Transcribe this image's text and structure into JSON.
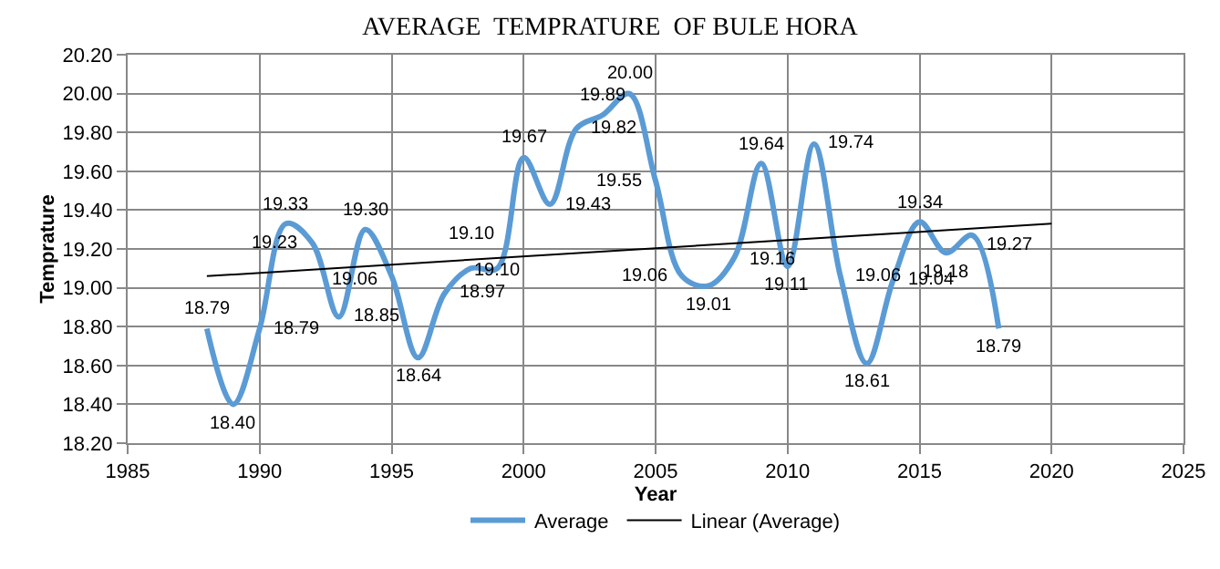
{
  "chart_data": {
    "type": "line",
    "title": "AVERAGE  TEMPRATURE  OF BULE HORA",
    "xlabel": "Year",
    "ylabel": "Temprature",
    "xlim": [
      1985,
      2025
    ],
    "xticks": [
      1985,
      1990,
      1995,
      2000,
      2005,
      2010,
      2015,
      2020,
      2025
    ],
    "ylim": [
      18.2,
      20.2
    ],
    "yticks": [
      {
        "value": 18.2,
        "label": "18.20"
      },
      {
        "value": 18.4,
        "label": "18.40"
      },
      {
        "value": 18.6,
        "label": "18.60"
      },
      {
        "value": 18.8,
        "label": "18.80"
      },
      {
        "value": 19.0,
        "label": "19.00"
      },
      {
        "value": 19.2,
        "label": "19.20"
      },
      {
        "value": 19.4,
        "label": "19.40"
      },
      {
        "value": 19.6,
        "label": "19.60"
      },
      {
        "value": 19.8,
        "label": "19.80"
      },
      {
        "value": 20.0,
        "label": "20.00"
      },
      {
        "value": 20.2,
        "label": "20.20"
      }
    ],
    "grid": true,
    "legend": "bottom",
    "marker": "none",
    "series": [
      {
        "name": "Average",
        "color": "#5b9bd5",
        "value_labels": [
          "18.79",
          "18.40",
          "18.79",
          "19.33",
          "19.23",
          "18.85",
          "19.30",
          "19.06",
          "18.64",
          "18.97",
          "19.10",
          "19.10",
          "19.67",
          "19.43",
          "19.82",
          "19.89",
          "20.00",
          "19.55",
          "19.06",
          "19.01",
          "19.16",
          "19.64",
          "19.11",
          "19.74",
          "19.06",
          "18.61",
          "19.04",
          "19.34",
          "19.18",
          "19.27",
          "18.79"
        ],
        "x": [
          1988,
          1989,
          1990,
          1991,
          1992,
          1993,
          1994,
          1995,
          1996,
          1997,
          1998,
          1999,
          2000,
          2001,
          2002,
          2003,
          2004,
          2005,
          2006,
          2007,
          2008,
          2009,
          2010,
          2011,
          2012,
          2013,
          2014,
          2015,
          2016,
          2017,
          2018
        ],
        "values": [
          18.79,
          18.4,
          18.79,
          19.33,
          19.23,
          18.85,
          19.3,
          19.06,
          18.64,
          18.97,
          19.1,
          19.1,
          19.67,
          19.43,
          19.82,
          19.89,
          20.0,
          19.55,
          19.06,
          19.01,
          19.16,
          19.64,
          19.11,
          19.74,
          19.06,
          18.61,
          19.04,
          19.34,
          19.18,
          19.27,
          18.79
        ]
      },
      {
        "name": "Linear (Average)",
        "color": "#000000",
        "x": [
          1988,
          2020
        ],
        "values": [
          19.06,
          19.33
        ]
      }
    ]
  }
}
